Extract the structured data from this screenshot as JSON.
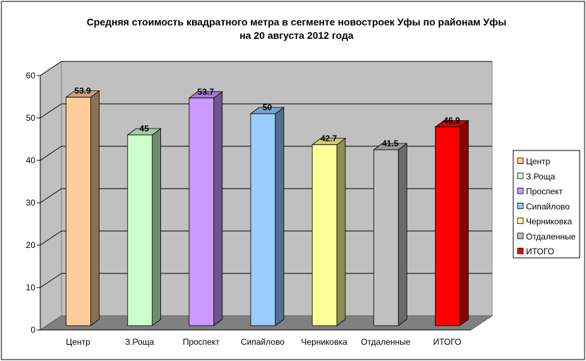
{
  "chart_data": {
    "type": "bar",
    "title": "Средняя стоимость квадратного метра в сегменте новостроек Уфы по районам Уфы",
    "subtitle": "на 20 августа 2012 года",
    "categories": [
      "Центр",
      "З.Роща",
      "Проспект",
      "Сипайлово",
      "Черниковка",
      "Отдаленные",
      "ИТОГО"
    ],
    "values": [
      53.9,
      45,
      53.7,
      50,
      42.7,
      41.5,
      46.9
    ],
    "value_labels": [
      "53.9",
      "45",
      "53.7",
      "50",
      "42.7",
      "41.5",
      "46.9"
    ],
    "ylim": [
      0,
      60
    ],
    "yticks": [
      "0",
      "10",
      "20",
      "30",
      "40",
      "50",
      "60"
    ],
    "colors": [
      "#FFCC99",
      "#CCFFCC",
      "#CC99FF",
      "#99CCFF",
      "#FFFF99",
      "#C0C0C0",
      "#FF0000"
    ],
    "grid": true,
    "legend_position": "right",
    "style": "3d-column"
  }
}
